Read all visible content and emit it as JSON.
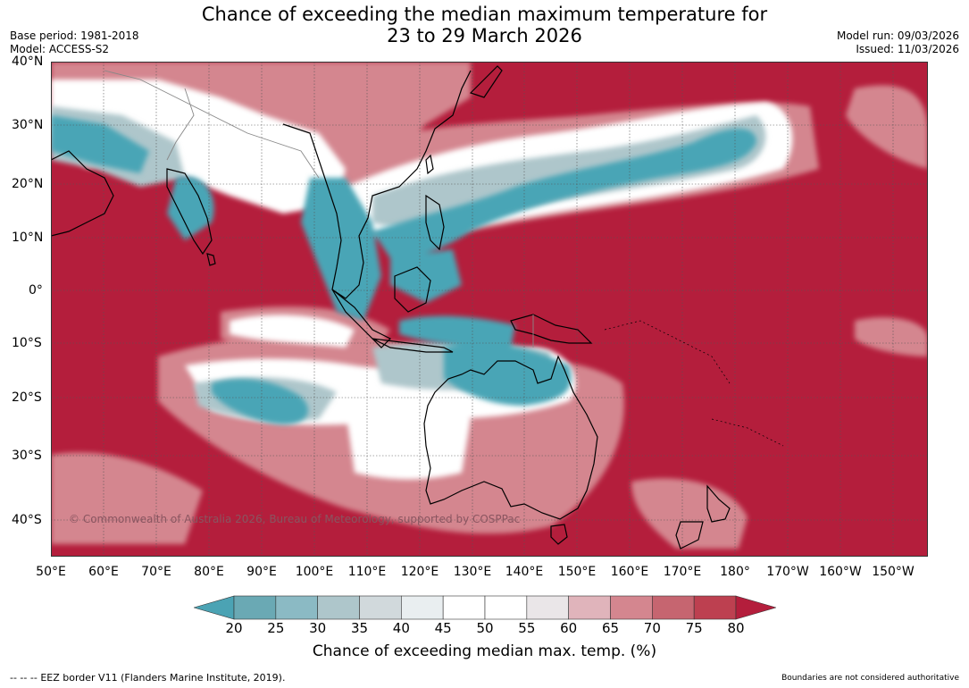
{
  "header": {
    "title_line1": "Chance of exceeding the median maximum temperature for",
    "title_line2": "23 to 29 March 2026",
    "base_period": "Base period: 1981-2018",
    "model": "Model: ACCESS-S2",
    "model_run": "Model run: 09/03/2026",
    "issued": "Issued: 11/03/2026"
  },
  "map": {
    "lat_labels": [
      "40°N",
      "30°N",
      "20°N",
      "10°N",
      "0°",
      "10°S",
      "20°S",
      "30°S",
      "40°S"
    ],
    "lon_labels": [
      "50°E",
      "60°E",
      "70°E",
      "80°E",
      "90°E",
      "100°E",
      "110°E",
      "120°E",
      "130°E",
      "140°E",
      "150°E",
      "160°E",
      "170°E",
      "180°",
      "170°W",
      "160°W",
      "150°W"
    ],
    "copyright": "© Commonwealth of Australia 2026, Bureau of Meteorology, supported by COSPPac",
    "colors": {
      "high": "#b41e3c",
      "low": "#49a5b6",
      "neutral": "#ffffff"
    }
  },
  "colorbar": {
    "ticks": [
      "20",
      "25",
      "30",
      "35",
      "40",
      "45",
      "50",
      "55",
      "60",
      "65",
      "70",
      "75",
      "80"
    ],
    "colors": [
      "#4ba3b4",
      "#6aa9b4",
      "#8bbac4",
      "#aec6cb",
      "#d1d9dc",
      "#e9eef0",
      "#ffffff",
      "#ffffff",
      "#eae6e8",
      "#e0b4bb",
      "#d4868f",
      "#c66570",
      "#bd4050",
      "#b41e3c"
    ],
    "title": "Chance of exceeding median max. temp. (%)"
  },
  "footer": {
    "legend_symbol": "-- -- --",
    "eez_note": "EEZ border V11 (Flanders Marine Institute, 2019).",
    "disclaimer": "Boundaries are not considered authoritative"
  }
}
